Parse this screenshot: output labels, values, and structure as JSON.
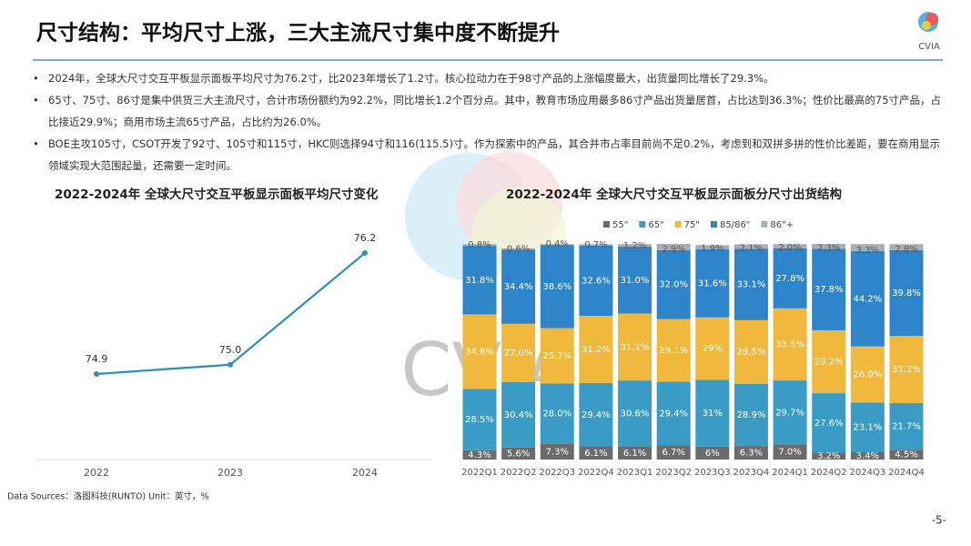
{
  "header": {
    "title": "尺寸结构：平均尺寸上涨，三大主流尺寸集中度不断提升",
    "logo": "CVIA"
  },
  "bullets": [
    "2024年，全球大尺寸交互平板显示面板平均尺寸为76.2寸，比2023年增长了1.2寸。核心拉动力在于98寸产品的上涨幅度最大，出货量同比增长了29.3%。",
    "65寸、75寸、86寸是集中供货三大主流尺寸，合计市场份额约为92.2%，同比增长1.2个百分点。其中，教育市场应用最多86寸产品出货量居首，占比达到36.3%；性价比最高的75寸产品，占比接近29.9%；商用市场主流65寸产品，占比约为26.0%。",
    "BOE主攻105寸，CSOT开发了92寸、105寸和115寸，HKC则选择94寸和116(115.5)寸。作为探索中的产品，其合并市占率目前尚不足0.2%，考虑到和双拼多拼的性价比差距，要在商用显示领域实现大范围起量，还需要一定时间。"
  ],
  "chart_data": [
    {
      "type": "line",
      "title": "2022-2024年 全球大尺寸交互平板显示面板平均尺寸变化",
      "categories": [
        "2022",
        "2023",
        "2024"
      ],
      "values": [
        74.9,
        75.0,
        76.2
      ],
      "value_labels": [
        "74.9",
        "75.0",
        "76.2"
      ],
      "color": "#2f8fb8"
    },
    {
      "type": "bar",
      "stacked": true,
      "title": "2022-2024年 全球大尺寸交互平板显示面板分尺寸出货结构",
      "categories": [
        "2022Q1",
        "2022Q2",
        "2022Q3",
        "2022Q4",
        "2023Q1",
        "2023Q2",
        "2023Q3",
        "2023Q4",
        "2024Q1",
        "2024Q2",
        "2024Q3",
        "2024Q4"
      ],
      "series": [
        {
          "name": "55\"",
          "color": "#6b6b6b",
          "values": [
            4.3,
            5.6,
            7.3,
            6.1,
            6.1,
            6.7,
            6,
            6.3,
            7.0,
            3.2,
            3.4,
            4.5
          ],
          "value_labels": [
            "4.3%",
            "5.6%",
            "7.3%",
            "6.1%",
            "6.1%",
            "6.7%",
            "6%",
            "6.3%",
            "7.0%",
            "3.2%",
            "3.4%",
            "4.5%"
          ]
        },
        {
          "name": "65\"",
          "color": "#3a9bc4",
          "values": [
            28.5,
            30.4,
            28.0,
            29.4,
            30.6,
            29.4,
            31,
            28.9,
            29.7,
            27.6,
            23.1,
            21.7
          ],
          "value_labels": [
            "28.5%",
            "30.4%",
            "28.0%",
            "29.4%",
            "30.6%",
            "29.4%",
            "31%",
            "28.9%",
            "29.7%",
            "27.6%",
            "23.1%",
            "21.7%"
          ]
        },
        {
          "name": "75\"",
          "color": "#f0b83c",
          "values": [
            34.6,
            27.0,
            25.7,
            31.2,
            31.1,
            29.1,
            29,
            29.5,
            33.5,
            29.2,
            26.0,
            31.2
          ],
          "value_labels": [
            "34.6%",
            "27.0%",
            "25.7%",
            "31.2%",
            "31.1%",
            "29.1%",
            "29%",
            "29.5%",
            "33.5%",
            "29.2%",
            "26.0%",
            "31.2%"
          ]
        },
        {
          "name": "85/86\"",
          "color": "#2e84c9",
          "values": [
            31.8,
            34.4,
            38.6,
            32.6,
            31.0,
            32.0,
            31.6,
            33.1,
            27.8,
            37.8,
            44.2,
            39.8
          ],
          "value_labels": [
            "31.8%",
            "34.4%",
            "38.6%",
            "32.6%",
            "31.0%",
            "32.0%",
            "31.6%",
            "33.1%",
            "27.8%",
            "37.8%",
            "44.2%",
            "39.8%"
          ]
        },
        {
          "name": "86\"+",
          "color": "#a7afb5",
          "values": [
            0.8,
            0.6,
            0.4,
            0.7,
            1.2,
            2.9,
            1.9,
            2.1,
            2.0,
            2.3,
            3.3,
            2.8
          ],
          "value_labels": [
            "0.8%",
            "0.6%",
            "0.4%",
            "0.7%",
            "1.2%",
            "2.9%",
            "1.9%",
            "2.1%",
            "2.0%",
            "2.3%",
            "3.3%",
            "2.8%"
          ]
        }
      ],
      "legend": "top"
    }
  ],
  "footer": {
    "source": "Data Sources：洛图科技(RUNTO)    Unit：英寸，%",
    "page": "-5-"
  }
}
